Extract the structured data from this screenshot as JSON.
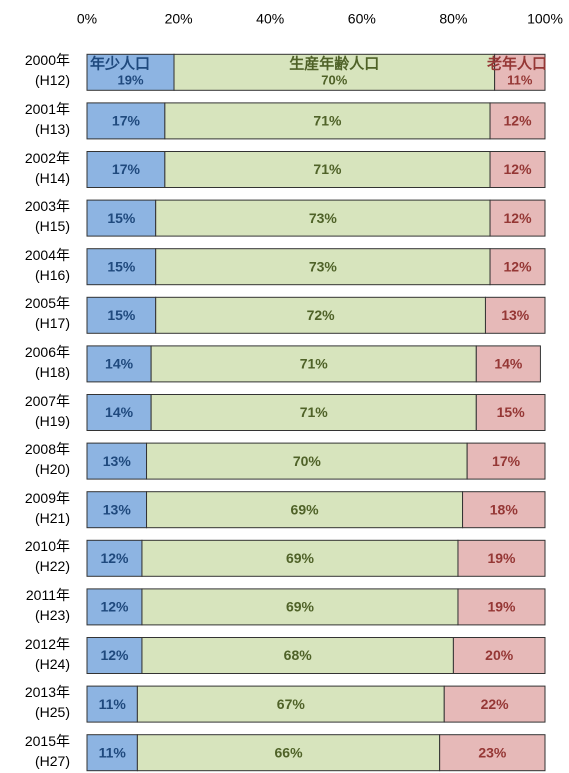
{
  "chart_data": {
    "type": "stacked_hbar",
    "categories": [
      "2000年\n(H12)",
      "2001年\n(H13)",
      "2002年\n(H14)",
      "2003年\n(H15)",
      "2004年\n(H16)",
      "2005年\n(H17)",
      "2006年\n(H18)",
      "2007年\n(H19)",
      "2008年\n(H20)",
      "2009年\n(H21)",
      "2010年\n(H22)",
      "2011年\n(H23)",
      "2012年\n(H24)",
      "2013年\n(H25)",
      "2015年\n(H27)"
    ],
    "series": [
      {
        "name": "年少人口",
        "color": "#8db4e2",
        "label_color": "#1f497d",
        "values": [
          19,
          17,
          17,
          15,
          15,
          15,
          14,
          14,
          13,
          13,
          12,
          12,
          12,
          11,
          11
        ],
        "value_labels": [
          "19%",
          "17%",
          "17%",
          "15%",
          "15%",
          "15%",
          "14%",
          "14%",
          "13%",
          "13%",
          "12%",
          "12%",
          "12%",
          "11%",
          "11%"
        ]
      },
      {
        "name": "生産年齢人口",
        "color": "#d7e4bd",
        "label_color": "#4f6228",
        "values": [
          70,
          71,
          71,
          73,
          73,
          72,
          71,
          71,
          70,
          69,
          69,
          69,
          68,
          67,
          66
        ],
        "value_labels": [
          "70%",
          "71%",
          "71%",
          "73%",
          "73%",
          "72%",
          "71%",
          "71%",
          "70%",
          "69%",
          "69%",
          "69%",
          "68%",
          "67%",
          "66%"
        ]
      },
      {
        "name": "老年人口",
        "color": "#e6b9b8",
        "label_color": "#953735",
        "values": [
          11,
          12,
          12,
          12,
          12,
          13,
          14,
          15,
          17,
          18,
          19,
          19,
          20,
          22,
          23
        ],
        "value_labels": [
          "11%",
          "12%",
          "12%",
          "12%",
          "12%",
          "13%",
          "14%",
          "15%",
          "17%",
          "18%",
          "19%",
          "19%",
          "20%",
          "22%",
          "23%"
        ]
      }
    ],
    "xlim": [
      0,
      100
    ],
    "xticks": [
      {
        "value": 0,
        "label": "0%"
      },
      {
        "value": 20,
        "label": "20%"
      },
      {
        "value": 40,
        "label": "40%"
      },
      {
        "value": 60,
        "label": "60%"
      },
      {
        "value": 80,
        "label": "80%"
      },
      {
        "value": 100,
        "label": "100%"
      }
    ],
    "grid": false
  }
}
